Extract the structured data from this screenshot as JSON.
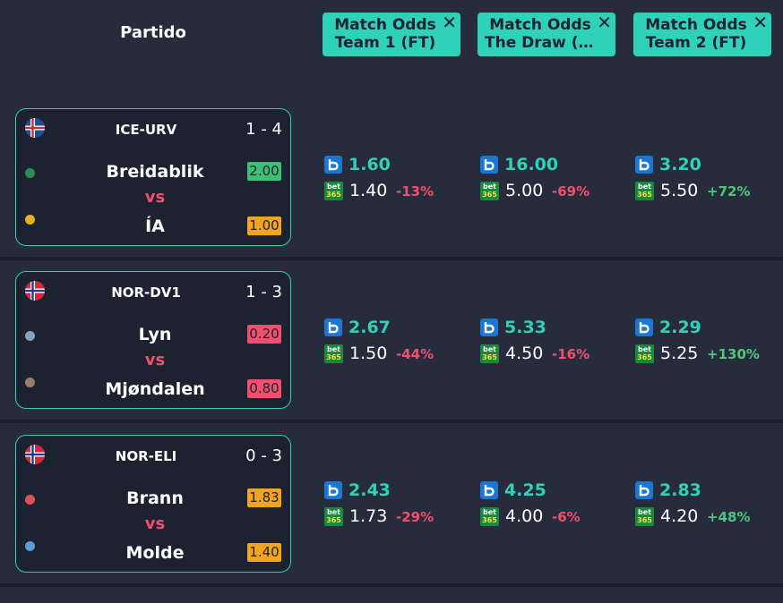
{
  "header": {
    "match_label": "Partido",
    "columns": [
      {
        "line1": "Match Odds",
        "line2": "Team 1 (FT)",
        "close": "✕"
      },
      {
        "line1": "Match Odds",
        "line2": "The Draw (F…",
        "close": "✕"
      },
      {
        "line1": "Match Odds",
        "line2": "Team 2 (FT)",
        "close": "✕"
      }
    ]
  },
  "colors": {
    "accent": "#2fd1b9",
    "negative": "#f0506e",
    "positive": "#4cc87a",
    "badge_green": "#3fbf74",
    "badge_yellow": "#f0a51c",
    "badge_red": "#f0506e"
  },
  "matches": [
    {
      "league": "ICE-URV",
      "score": "1 - 4",
      "flag": "iceland-flag",
      "home": "Breidablik",
      "away": "ÍA",
      "vs": "vs",
      "home_value": "2.00",
      "away_value": "1.00",
      "home_badge_color": "#3fbf74",
      "away_badge_color": "#f0a51c",
      "odds": [
        {
          "main": "1.60",
          "b365": "1.40",
          "pct": "-13%"
        },
        {
          "main": "16.00",
          "b365": "5.00",
          "pct": "-69%"
        },
        {
          "main": "3.20",
          "b365": "5.50",
          "pct": "+72%"
        }
      ]
    },
    {
      "league": "NOR-DV1",
      "score": "1 - 3",
      "flag": "norway-flag",
      "home": "Lyn",
      "away": "Mjøndalen",
      "vs": "vs",
      "home_value": "0.20",
      "away_value": "0.80",
      "home_badge_color": "#f0506e",
      "away_badge_color": "#f0506e",
      "odds": [
        {
          "main": "2.67",
          "b365": "1.50",
          "pct": "-44%"
        },
        {
          "main": "5.33",
          "b365": "4.50",
          "pct": "-16%"
        },
        {
          "main": "2.29",
          "b365": "5.25",
          "pct": "+130%"
        }
      ]
    },
    {
      "league": "NOR-ELI",
      "score": "0 - 3",
      "flag": "norway-flag",
      "home": "Brann",
      "away": "Molde",
      "vs": "vs",
      "home_value": "1.83",
      "away_value": "1.40",
      "home_badge_color": "#f0a51c",
      "away_badge_color": "#f0a51c",
      "odds": [
        {
          "main": "2.43",
          "b365": "1.73",
          "pct": "-29%"
        },
        {
          "main": "4.25",
          "b365": "4.00",
          "pct": "-6%"
        },
        {
          "main": "2.83",
          "b365": "4.20",
          "pct": "+48%"
        }
      ]
    }
  ],
  "bookmakers": {
    "b365_top": "bet",
    "b365_bottom": "365"
  }
}
